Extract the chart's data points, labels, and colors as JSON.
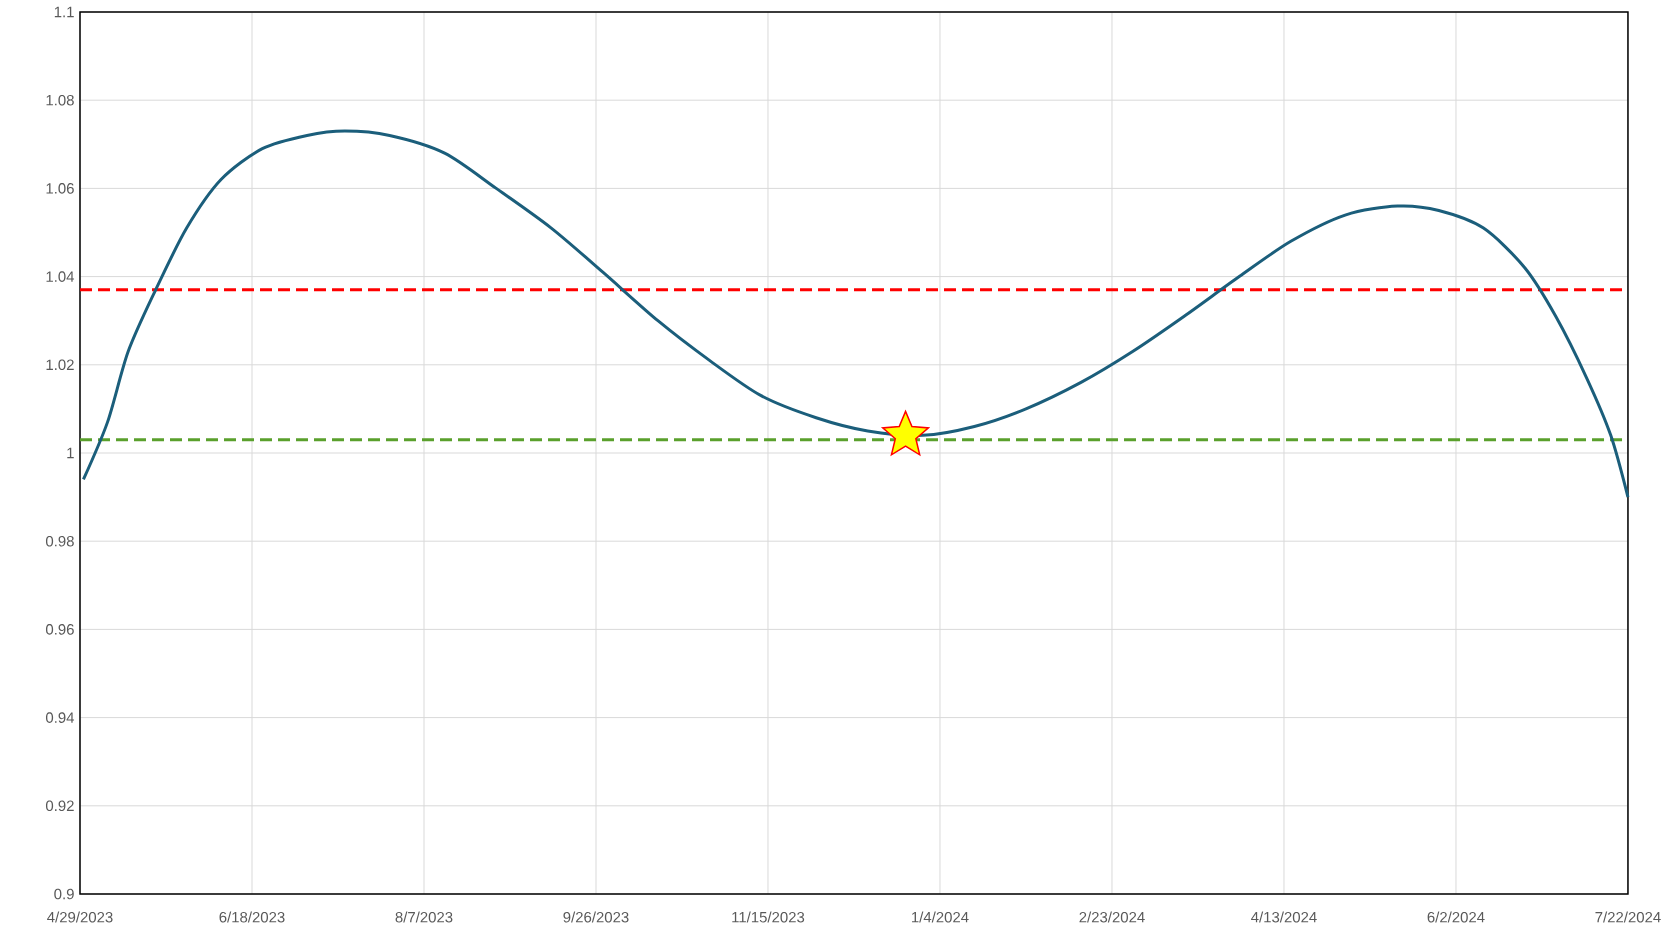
{
  "chart_data": {
    "type": "line",
    "series": [
      {
        "color": "#1b5e7b",
        "marker": "none",
        "line_style": "solid",
        "x": [
          "2023-04-30",
          "2023-05-07",
          "2023-05-13",
          "2023-05-21",
          "2023-05-30",
          "2023-06-09",
          "2023-06-21",
          "2023-07-04",
          "2023-07-15",
          "2023-07-28",
          "2023-08-13",
          "2023-08-28",
          "2023-09-13",
          "2023-09-28",
          "2023-10-14",
          "2023-10-29",
          "2023-11-13",
          "2023-11-29",
          "2023-12-14",
          "2023-12-30",
          "2024-01-14",
          "2024-01-29",
          "2024-02-14",
          "2024-02-29",
          "2024-03-15",
          "2024-03-31",
          "2024-04-15",
          "2024-05-01",
          "2024-05-16",
          "2024-05-28",
          "2024-06-10",
          "2024-06-22",
          "2024-07-01",
          "2024-07-10",
          "2024-07-17",
          "2024-07-22"
        ],
        "values": [
          0.994,
          1.007,
          1.023,
          1.037,
          1.051,
          1.062,
          1.069,
          1.072,
          1.073,
          1.072,
          1.068,
          1.06,
          1.051,
          1.041,
          1.03,
          1.021,
          1.013,
          1.008,
          1.005,
          1.004,
          1.006,
          1.01,
          1.016,
          1.023,
          1.031,
          1.04,
          1.048,
          1.054,
          1.056,
          1.055,
          1.051,
          1.042,
          1.031,
          1.017,
          1.004,
          0.99
        ]
      },
      {
        "type": "scatter",
        "color": "#ffff00",
        "marker": "star",
        "x": [
          "2023-12-25"
        ],
        "values": [
          1.004
        ]
      }
    ],
    "xlim": [
      "2023-04-29",
      "2024-07-22"
    ],
    "xticks": [
      {
        "value": "2023-04-29",
        "label": "4/29/2023"
      },
      {
        "value": "2023-06-18",
        "label": "6/18/2023"
      },
      {
        "value": "2023-08-07",
        "label": "8/7/2023"
      },
      {
        "value": "2023-09-26",
        "label": "9/26/2023"
      },
      {
        "value": "2023-11-15",
        "label": "11/15/2023"
      },
      {
        "value": "2024-01-04",
        "label": "1/4/2024"
      },
      {
        "value": "2024-02-23",
        "label": "2/23/2024"
      },
      {
        "value": "2024-04-13",
        "label": "4/13/2024"
      },
      {
        "value": "2024-06-02",
        "label": "6/2/2024"
      },
      {
        "value": "2024-07-22",
        "label": "7/22/2024"
      }
    ],
    "ylim": [
      0.9,
      1.1
    ],
    "yticks": [
      0.9,
      0.92,
      0.94,
      0.96,
      0.98,
      1,
      1.02,
      1.04,
      1.06,
      1.08,
      1.1
    ],
    "ref_lines": [
      {
        "axis": "y",
        "value": 1.037,
        "color": "#ff0000",
        "line_style": "dashed"
      },
      {
        "axis": "y",
        "value": 1.003,
        "color": "#5aa02c",
        "line_style": "dashed"
      }
    ],
    "grid": true
  }
}
